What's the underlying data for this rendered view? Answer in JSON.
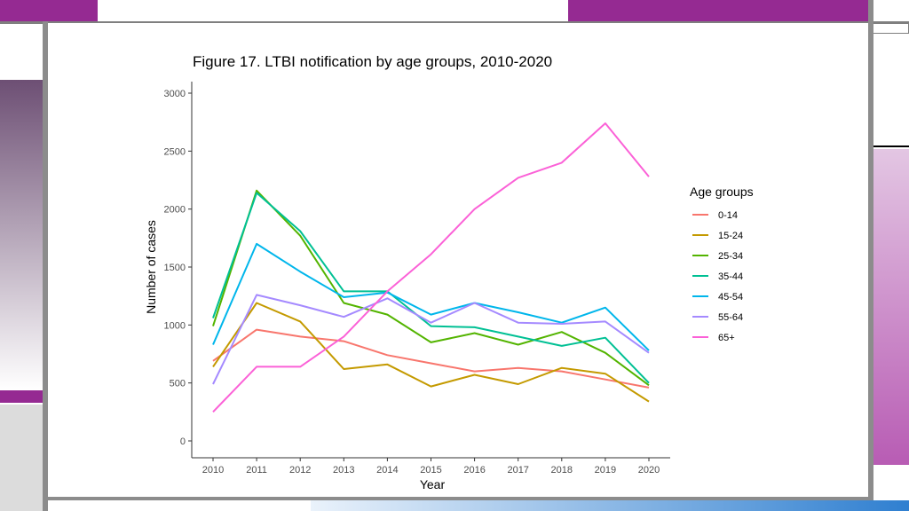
{
  "colors": {
    "accent_purple": "#952a92",
    "frame_gray": "#7f7f7f",
    "light_mauve": "#c0b6c4"
  },
  "chart_data": {
    "type": "line",
    "title": "Figure 17. LTBI notification by age groups, 2010-2020",
    "xlabel": "Year",
    "ylabel": "Number of cases",
    "x": [
      2010,
      2011,
      2012,
      2013,
      2014,
      2015,
      2016,
      2017,
      2018,
      2019,
      2020
    ],
    "ylim": [
      0,
      3000
    ],
    "yticks": [
      0,
      500,
      1000,
      1500,
      2000,
      2500,
      3000
    ],
    "grid": false,
    "legend": {
      "title": "Age groups",
      "position": "right"
    },
    "series": [
      {
        "name": "0-14",
        "color": "#f8766d",
        "values": [
          690,
          960,
          900,
          860,
          740,
          670,
          600,
          630,
          600,
          530,
          460
        ]
      },
      {
        "name": "15-24",
        "color": "#c49a00",
        "values": [
          640,
          1190,
          1030,
          620,
          660,
          470,
          570,
          490,
          630,
          580,
          340
        ]
      },
      {
        "name": "25-34",
        "color": "#53b400",
        "values": [
          990,
          2160,
          1770,
          1190,
          1090,
          850,
          930,
          830,
          940,
          760,
          480
        ]
      },
      {
        "name": "35-44",
        "color": "#00c094",
        "values": [
          1060,
          2140,
          1810,
          1290,
          1290,
          990,
          980,
          900,
          820,
          890,
          500
        ]
      },
      {
        "name": "45-54",
        "color": "#00b6eb",
        "values": [
          830,
          1700,
          1460,
          1240,
          1280,
          1090,
          1190,
          1110,
          1020,
          1150,
          780
        ]
      },
      {
        "name": "55-64",
        "color": "#a58aff",
        "values": [
          490,
          1260,
          1170,
          1070,
          1230,
          1020,
          1190,
          1020,
          1010,
          1030,
          760
        ]
      },
      {
        "name": "65+",
        "color": "#fb61d7",
        "values": [
          250,
          640,
          640,
          900,
          1290,
          1610,
          2000,
          2270,
          2400,
          2740,
          2280
        ]
      }
    ]
  }
}
